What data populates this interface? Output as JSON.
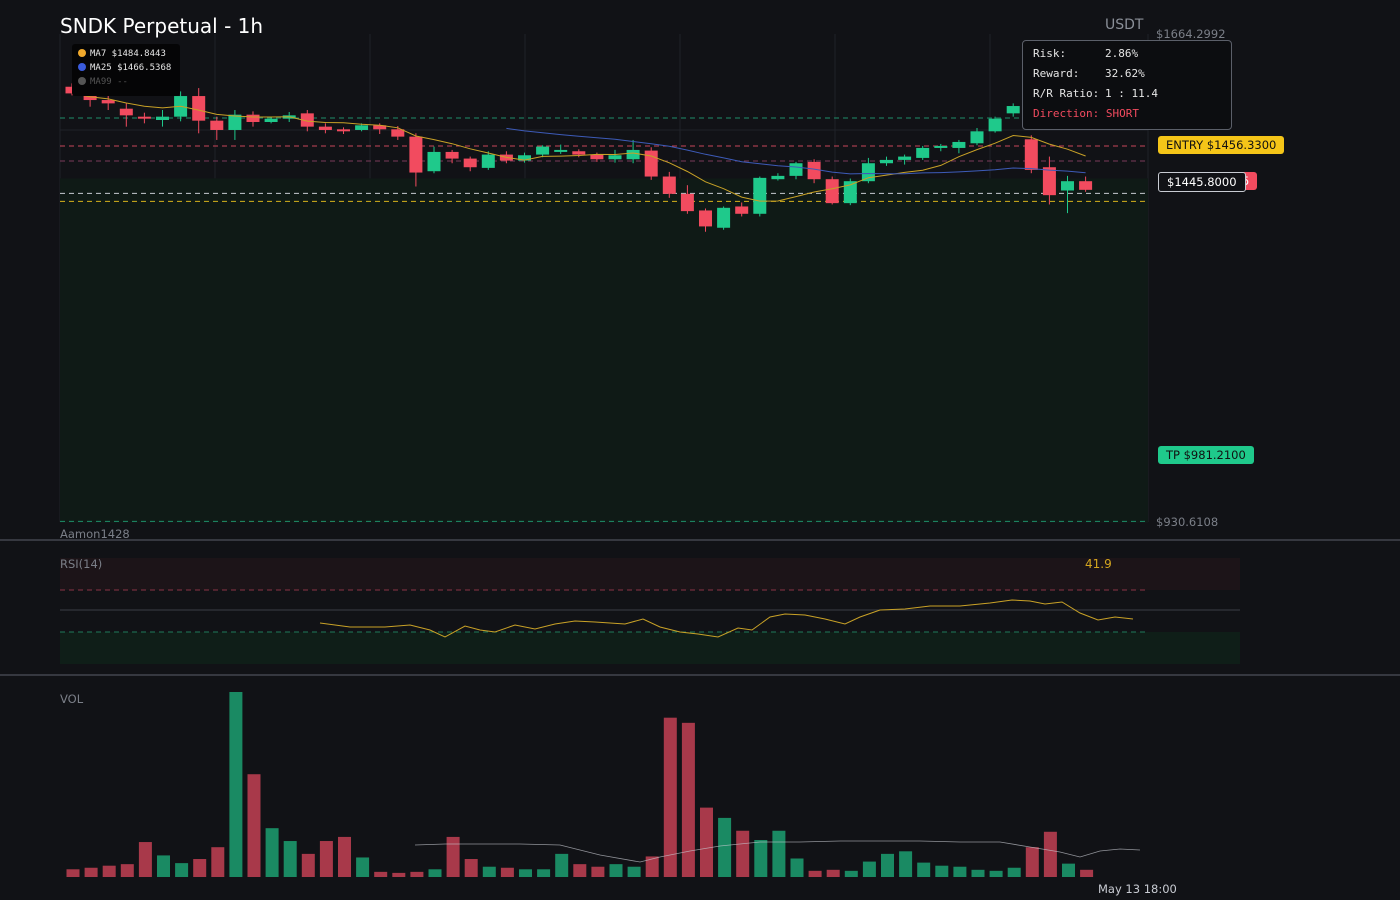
{
  "header": {
    "title": "SNDK Perpetual - 1h",
    "currency": "USDT"
  },
  "ma_legend": [
    {
      "label": "MA7 $1484.8443",
      "color": "#f0a92c"
    },
    {
      "label": "MA25 $1466.5368",
      "color": "#3a5bdc"
    },
    {
      "label": "MA99 --",
      "color": "#555555"
    }
  ],
  "risk_panel": {
    "risk_key": "Risk:",
    "risk_val": "2.86%",
    "reward_key": "Reward:",
    "reward_val": "32.62%",
    "ratio_key": "R/R Ratio:",
    "ratio_val": "1 : 11.4",
    "direction": "Direction: SHORT"
  },
  "price_axis": {
    "top": "$1664.2992",
    "bottom": "$930.6108",
    "entry": "ENTRY $1456.3300",
    "current": "$1445.8000",
    "current_partial": "5",
    "tp": "TP $981.2100"
  },
  "watermark": "Aamon1428",
  "rsi": {
    "label": "RSI(14)",
    "value": "41.9"
  },
  "volume": {
    "label": "VOL"
  },
  "time_axis": {
    "label": "May 13 18:00"
  },
  "colors": {
    "bull": "#1fc98b",
    "bear": "#f24b5f",
    "ma7": "#c9a227",
    "ma25": "#3d5bb8",
    "background": "#111216",
    "entry_tag": "#f5c518",
    "tp_tag": "#1fc98b",
    "direction_short": "#f24b5f"
  },
  "chart_data": {
    "type": "candlestick",
    "price_range": [
      930.6108,
      1664.2992
    ],
    "levels": {
      "entry": 1456.33,
      "take_profit": 981.21,
      "current": 1445.8
    },
    "candles": [
      [
        1585,
        1575,
        1590,
        1572
      ],
      [
        1572,
        1565,
        1578,
        1555
      ],
      [
        1565,
        1560,
        1572,
        1550
      ],
      [
        1552,
        1542,
        1560,
        1525
      ],
      [
        1540,
        1537,
        1546,
        1530
      ],
      [
        1535,
        1540,
        1550,
        1525
      ],
      [
        1540,
        1571,
        1578,
        1533
      ],
      [
        1571,
        1534,
        1583,
        1515
      ],
      [
        1534,
        1520,
        1540,
        1505
      ],
      [
        1520,
        1543,
        1550,
        1505
      ],
      [
        1543,
        1532,
        1548,
        1525
      ],
      [
        1532,
        1537,
        1540,
        1530
      ],
      [
        1537,
        1542,
        1547,
        1532
      ],
      [
        1545,
        1525,
        1550,
        1518
      ],
      [
        1525,
        1520,
        1530,
        1515
      ],
      [
        1521,
        1518,
        1524,
        1514
      ],
      [
        1520,
        1527,
        1530,
        1518
      ],
      [
        1527,
        1521,
        1530,
        1514
      ],
      [
        1521,
        1510,
        1526,
        1505
      ],
      [
        1510,
        1456,
        1515,
        1435
      ],
      [
        1458,
        1487,
        1495,
        1455
      ],
      [
        1487,
        1477,
        1490,
        1470
      ],
      [
        1477,
        1464,
        1480,
        1458
      ],
      [
        1463,
        1483,
        1488,
        1460
      ],
      [
        1483,
        1474,
        1488,
        1470
      ],
      [
        1474,
        1482,
        1486,
        1471
      ],
      [
        1483,
        1495,
        1497,
        1479
      ],
      [
        1490,
        1490,
        1498,
        1484
      ],
      [
        1488,
        1483,
        1491,
        1479
      ],
      [
        1483,
        1476,
        1486,
        1472
      ],
      [
        1476,
        1482,
        1490,
        1471
      ],
      [
        1476,
        1490,
        1505,
        1470
      ],
      [
        1489,
        1450,
        1494,
        1445
      ],
      [
        1450,
        1424,
        1457,
        1418
      ],
      [
        1424,
        1398,
        1437,
        1394
      ],
      [
        1399,
        1375,
        1402,
        1367
      ],
      [
        1373,
        1403,
        1405,
        1370
      ],
      [
        1405,
        1394,
        1411,
        1390
      ],
      [
        1394,
        1448,
        1450,
        1390
      ],
      [
        1446,
        1451,
        1455,
        1444
      ],
      [
        1451,
        1470,
        1472,
        1446
      ],
      [
        1472,
        1446,
        1476,
        1440
      ],
      [
        1446,
        1410,
        1450,
        1408
      ],
      [
        1410,
        1443,
        1447,
        1407
      ],
      [
        1443,
        1470,
        1478,
        1440
      ],
      [
        1470,
        1475,
        1480,
        1466
      ],
      [
        1475,
        1480,
        1483,
        1468
      ],
      [
        1478,
        1493,
        1496,
        1475
      ],
      [
        1493,
        1496,
        1499,
        1488
      ],
      [
        1493,
        1502,
        1505,
        1485
      ],
      [
        1500,
        1518,
        1523,
        1497
      ],
      [
        1518,
        1537,
        1540,
        1516
      ],
      [
        1545,
        1556,
        1560,
        1540
      ],
      [
        1506,
        1460,
        1512,
        1455
      ],
      [
        1464,
        1422,
        1480,
        1408
      ],
      [
        1429,
        1443,
        1451,
        1395
      ],
      [
        1443,
        1430,
        1450,
        1427
      ]
    ],
    "volumes": [
      15,
      18,
      22,
      25,
      68,
      42,
      27,
      35,
      58,
      360,
      200,
      95,
      70,
      45,
      70,
      78,
      38,
      10,
      8,
      10,
      15,
      78,
      35,
      20,
      18,
      15,
      15,
      45,
      25,
      20,
      25,
      20,
      40,
      310,
      300,
      135,
      115,
      90,
      72,
      90,
      36,
      12,
      14,
      12,
      30,
      45,
      50,
      28,
      22,
      20,
      14,
      12,
      18,
      58,
      88,
      26,
      14
    ]
  }
}
